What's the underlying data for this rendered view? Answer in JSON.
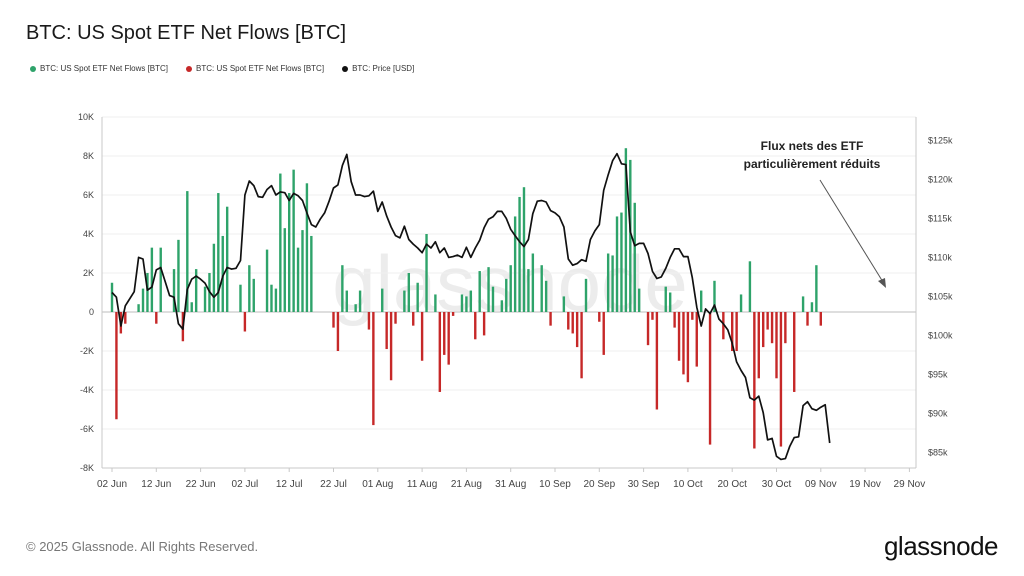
{
  "header": {
    "title": "BTC: US Spot ETF Net Flows [BTC]"
  },
  "legend": [
    {
      "label": "BTC: US Spot ETF Net Flows [BTC]",
      "color": "#2ea36a"
    },
    {
      "label": "BTC: US Spot ETF Net Flows [BTC]",
      "color": "#c62828"
    },
    {
      "label": "BTC: Price [USD]",
      "color": "#111111"
    }
  ],
  "annotation": {
    "line1": "Flux nets des ETF",
    "line2": "particulièrement réduits"
  },
  "watermark": "glassnode",
  "footer": {
    "copyright": "© 2025 Glassnode. All Rights Reserved.",
    "brand": "glassnode"
  },
  "chart_data": {
    "type": "bar",
    "colors": {
      "positive": "#2ea36a",
      "negative": "#c62828",
      "price": "#111111"
    },
    "y_left": {
      "ylim": [
        -8000,
        10000
      ],
      "ticks": [
        -8000,
        -6000,
        -4000,
        -2000,
        0,
        2000,
        4000,
        6000,
        8000,
        10000
      ],
      "tick_labels": [
        "-8K",
        "-6K",
        "-4K",
        "-2K",
        "0",
        "2K",
        "4K",
        "6K",
        "8K",
        "10K"
      ]
    },
    "y_right": {
      "ylim": [
        83000,
        128000
      ],
      "ticks": [
        85000,
        90000,
        95000,
        100000,
        105000,
        110000,
        115000,
        120000,
        125000
      ],
      "tick_labels": [
        "$85k",
        "$90k",
        "$95k",
        "$100k",
        "$105k",
        "$110k",
        "$115k",
        "$120k",
        "$125k"
      ]
    },
    "x_range": [
      0,
      182
    ],
    "x_ticks": [
      {
        "d": 0,
        "label": "02 Jun"
      },
      {
        "d": 10,
        "label": "12 Jun"
      },
      {
        "d": 20,
        "label": "22 Jun"
      },
      {
        "d": 30,
        "label": "02 Jul"
      },
      {
        "d": 40,
        "label": "12 Jul"
      },
      {
        "d": 50,
        "label": "22 Jul"
      },
      {
        "d": 60,
        "label": "01 Aug"
      },
      {
        "d": 70,
        "label": "11 Aug"
      },
      {
        "d": 80,
        "label": "21 Aug"
      },
      {
        "d": 90,
        "label": "31 Aug"
      },
      {
        "d": 100,
        "label": "10 Sep"
      },
      {
        "d": 110,
        "label": "20 Sep"
      },
      {
        "d": 120,
        "label": "30 Sep"
      },
      {
        "d": 130,
        "label": "10 Oct"
      },
      {
        "d": 140,
        "label": "20 Oct"
      },
      {
        "d": 150,
        "label": "30 Oct"
      },
      {
        "d": 160,
        "label": "09 Nov"
      },
      {
        "d": 170,
        "label": "19 Nov"
      },
      {
        "d": 180,
        "label": "29 Nov"
      }
    ],
    "flows": [
      [
        0,
        1500
      ],
      [
        1,
        -5500
      ],
      [
        2,
        -1100
      ],
      [
        3,
        -600
      ],
      [
        6,
        400
      ],
      [
        7,
        1200
      ],
      [
        8,
        2000
      ],
      [
        9,
        3300
      ],
      [
        10,
        -600
      ],
      [
        11,
        3300
      ],
      [
        14,
        2200
      ],
      [
        15,
        3700
      ],
      [
        16,
        -1500
      ],
      [
        17,
        6200
      ],
      [
        18,
        500
      ],
      [
        19,
        2200
      ],
      [
        21,
        1300
      ],
      [
        22,
        2000
      ],
      [
        23,
        3500
      ],
      [
        24,
        6100
      ],
      [
        25,
        3900
      ],
      [
        26,
        5400
      ],
      [
        29,
        1400
      ],
      [
        30,
        -1000
      ],
      [
        31,
        2400
      ],
      [
        32,
        1700
      ],
      [
        35,
        3200
      ],
      [
        36,
        1400
      ],
      [
        37,
        1200
      ],
      [
        38,
        7100
      ],
      [
        39,
        4300
      ],
      [
        40,
        6100
      ],
      [
        41,
        7300
      ],
      [
        42,
        3300
      ],
      [
        43,
        4200
      ],
      [
        44,
        6600
      ],
      [
        45,
        3900
      ],
      [
        50,
        -800
      ],
      [
        51,
        -2000
      ],
      [
        52,
        2400
      ],
      [
        53,
        1100
      ],
      [
        55,
        400
      ],
      [
        56,
        1100
      ],
      [
        58,
        -900
      ],
      [
        59,
        -5800
      ],
      [
        61,
        1200
      ],
      [
        62,
        -1900
      ],
      [
        63,
        -3500
      ],
      [
        64,
        -600
      ],
      [
        66,
        1100
      ],
      [
        67,
        2000
      ],
      [
        68,
        -700
      ],
      [
        69,
        1500
      ],
      [
        70,
        -2500
      ],
      [
        71,
        4000
      ],
      [
        73,
        900
      ],
      [
        74,
        -4100
      ],
      [
        75,
        -2200
      ],
      [
        76,
        -2700
      ],
      [
        77,
        -200
      ],
      [
        79,
        900
      ],
      [
        80,
        800
      ],
      [
        81,
        1100
      ],
      [
        82,
        -1400
      ],
      [
        83,
        2100
      ],
      [
        84,
        -1200
      ],
      [
        85,
        2300
      ],
      [
        86,
        1300
      ],
      [
        88,
        600
      ],
      [
        89,
        1700
      ],
      [
        90,
        2400
      ],
      [
        91,
        4900
      ],
      [
        92,
        5900
      ],
      [
        93,
        6400
      ],
      [
        94,
        2200
      ],
      [
        95,
        3000
      ],
      [
        97,
        2400
      ],
      [
        98,
        1600
      ],
      [
        99,
        -700
      ],
      [
        102,
        800
      ],
      [
        103,
        -900
      ],
      [
        104,
        -1100
      ],
      [
        105,
        -1800
      ],
      [
        106,
        -3400
      ],
      [
        107,
        1700
      ],
      [
        110,
        -500
      ],
      [
        111,
        -2200
      ],
      [
        112,
        3000
      ],
      [
        113,
        2900
      ],
      [
        114,
        4900
      ],
      [
        115,
        5100
      ],
      [
        116,
        8400
      ],
      [
        117,
        7800
      ],
      [
        118,
        5600
      ],
      [
        119,
        1200
      ],
      [
        121,
        -1700
      ],
      [
        122,
        -400
      ],
      [
        123,
        -5000
      ],
      [
        125,
        1300
      ],
      [
        126,
        1000
      ],
      [
        127,
        -800
      ],
      [
        128,
        -2500
      ],
      [
        129,
        -3200
      ],
      [
        130,
        -3600
      ],
      [
        131,
        -400
      ],
      [
        132,
        -2800
      ],
      [
        133,
        1100
      ],
      [
        135,
        -6800
      ],
      [
        136,
        1600
      ],
      [
        138,
        -1400
      ],
      [
        140,
        -2000
      ],
      [
        141,
        -2000
      ],
      [
        142,
        900
      ],
      [
        144,
        2600
      ],
      [
        145,
        -7000
      ],
      [
        146,
        -3400
      ],
      [
        147,
        -1800
      ],
      [
        148,
        -900
      ],
      [
        149,
        -1600
      ],
      [
        150,
        -3400
      ],
      [
        151,
        -6900
      ],
      [
        152,
        -1600
      ],
      [
        154,
        -4100
      ],
      [
        156,
        800
      ],
      [
        157,
        -700
      ],
      [
        158,
        500
      ],
      [
        159,
        2400
      ],
      [
        160,
        -700
      ]
    ],
    "price": [
      [
        0,
        105500
      ],
      [
        1,
        104900
      ],
      [
        2,
        101200
      ],
      [
        3,
        103800
      ],
      [
        5,
        105600
      ],
      [
        6,
        110000
      ],
      [
        7,
        109800
      ],
      [
        8,
        105800
      ],
      [
        9,
        106200
      ],
      [
        10,
        108400
      ],
      [
        11,
        108700
      ],
      [
        12,
        106900
      ],
      [
        13,
        105100
      ],
      [
        14,
        104900
      ],
      [
        15,
        101500
      ],
      [
        16,
        100800
      ],
      [
        17,
        105900
      ],
      [
        18,
        107200
      ],
      [
        19,
        107600
      ],
      [
        20,
        107200
      ],
      [
        21,
        106700
      ],
      [
        22,
        105600
      ],
      [
        23,
        104900
      ],
      [
        24,
        105500
      ],
      [
        25,
        107600
      ],
      [
        26,
        108700
      ],
      [
        27,
        108500
      ],
      [
        28,
        108600
      ],
      [
        29,
        109600
      ],
      [
        30,
        118000
      ],
      [
        31,
        119800
      ],
      [
        32,
        119200
      ],
      [
        33,
        117800
      ],
      [
        34,
        117700
      ],
      [
        35,
        118700
      ],
      [
        36,
        119200
      ],
      [
        37,
        118000
      ],
      [
        38,
        118400
      ],
      [
        39,
        118300
      ],
      [
        40,
        117300
      ],
      [
        41,
        118200
      ],
      [
        42,
        117900
      ],
      [
        43,
        117300
      ],
      [
        44,
        115700
      ],
      [
        45,
        114200
      ],
      [
        46,
        113900
      ],
      [
        47,
        114900
      ],
      [
        48,
        115700
      ],
      [
        49,
        117200
      ],
      [
        50,
        118900
      ],
      [
        51,
        119300
      ],
      [
        52,
        121800
      ],
      [
        53,
        123200
      ],
      [
        54,
        119700
      ],
      [
        55,
        118000
      ],
      [
        56,
        118000
      ],
      [
        57,
        117800
      ],
      [
        58,
        117900
      ],
      [
        59,
        118500
      ],
      [
        60,
        115900
      ],
      [
        61,
        117100
      ],
      [
        62,
        115300
      ],
      [
        63,
        113900
      ],
      [
        64,
        112800
      ],
      [
        65,
        112500
      ],
      [
        66,
        114000
      ],
      [
        67,
        112300
      ],
      [
        68,
        111700
      ],
      [
        69,
        111200
      ],
      [
        70,
        110600
      ],
      [
        71,
        111700
      ],
      [
        72,
        111200
      ],
      [
        73,
        112000
      ],
      [
        74,
        110600
      ],
      [
        75,
        111200
      ],
      [
        76,
        110000
      ],
      [
        77,
        110100
      ],
      [
        78,
        110300
      ],
      [
        79,
        110000
      ],
      [
        80,
        111300
      ],
      [
        81,
        110000
      ],
      [
        82,
        111200
      ],
      [
        83,
        112200
      ],
      [
        84,
        113800
      ],
      [
        85,
        114900
      ],
      [
        86,
        115200
      ],
      [
        87,
        115900
      ],
      [
        88,
        115900
      ],
      [
        89,
        115000
      ],
      [
        90,
        113600
      ],
      [
        91,
        112800
      ],
      [
        92,
        112000
      ],
      [
        93,
        111400
      ],
      [
        94,
        112300
      ],
      [
        95,
        115600
      ],
      [
        96,
        117200
      ],
      [
        97,
        117300
      ],
      [
        98,
        117100
      ],
      [
        99,
        116000
      ],
      [
        100,
        115700
      ],
      [
        101,
        115200
      ],
      [
        102,
        113900
      ],
      [
        103,
        109800
      ],
      [
        104,
        109000
      ],
      [
        105,
        109200
      ],
      [
        106,
        109700
      ],
      [
        107,
        109500
      ],
      [
        108,
        112300
      ],
      [
        109,
        113400
      ],
      [
        110,
        114200
      ],
      [
        111,
        118600
      ],
      [
        112,
        120600
      ],
      [
        113,
        122400
      ],
      [
        114,
        123300
      ],
      [
        115,
        122000
      ],
      [
        116,
        121900
      ],
      [
        117,
        113300
      ],
      [
        118,
        111500
      ],
      [
        119,
        111800
      ],
      [
        120,
        111800
      ],
      [
        121,
        110500
      ],
      [
        122,
        108200
      ],
      [
        123,
        107300
      ],
      [
        124,
        107500
      ],
      [
        125,
        108600
      ],
      [
        126,
        110000
      ],
      [
        127,
        111100
      ],
      [
        128,
        111100
      ],
      [
        129,
        110100
      ],
      [
        130,
        110100
      ],
      [
        131,
        107400
      ],
      [
        132,
        103600
      ],
      [
        133,
        101200
      ],
      [
        134,
        103400
      ],
      [
        135,
        102800
      ],
      [
        136,
        103900
      ],
      [
        137,
        102100
      ],
      [
        138,
        101500
      ],
      [
        139,
        100700
      ],
      [
        140,
        99000
      ],
      [
        141,
        96600
      ],
      [
        142,
        95500
      ],
      [
        143,
        94600
      ],
      [
        144,
        92000
      ],
      [
        145,
        91700
      ],
      [
        146,
        92200
      ],
      [
        147,
        90100
      ],
      [
        148,
        86600
      ],
      [
        149,
        86800
      ],
      [
        150,
        84500
      ],
      [
        151,
        84100
      ],
      [
        152,
        84200
      ],
      [
        153,
        85800
      ],
      [
        154,
        86900
      ],
      [
        155,
        87000
      ],
      [
        156,
        91000
      ],
      [
        157,
        91500
      ],
      [
        158,
        90600
      ],
      [
        159,
        90400
      ],
      [
        160,
        90800
      ],
      [
        161,
        91100
      ],
      [
        162,
        86200
      ]
    ]
  }
}
